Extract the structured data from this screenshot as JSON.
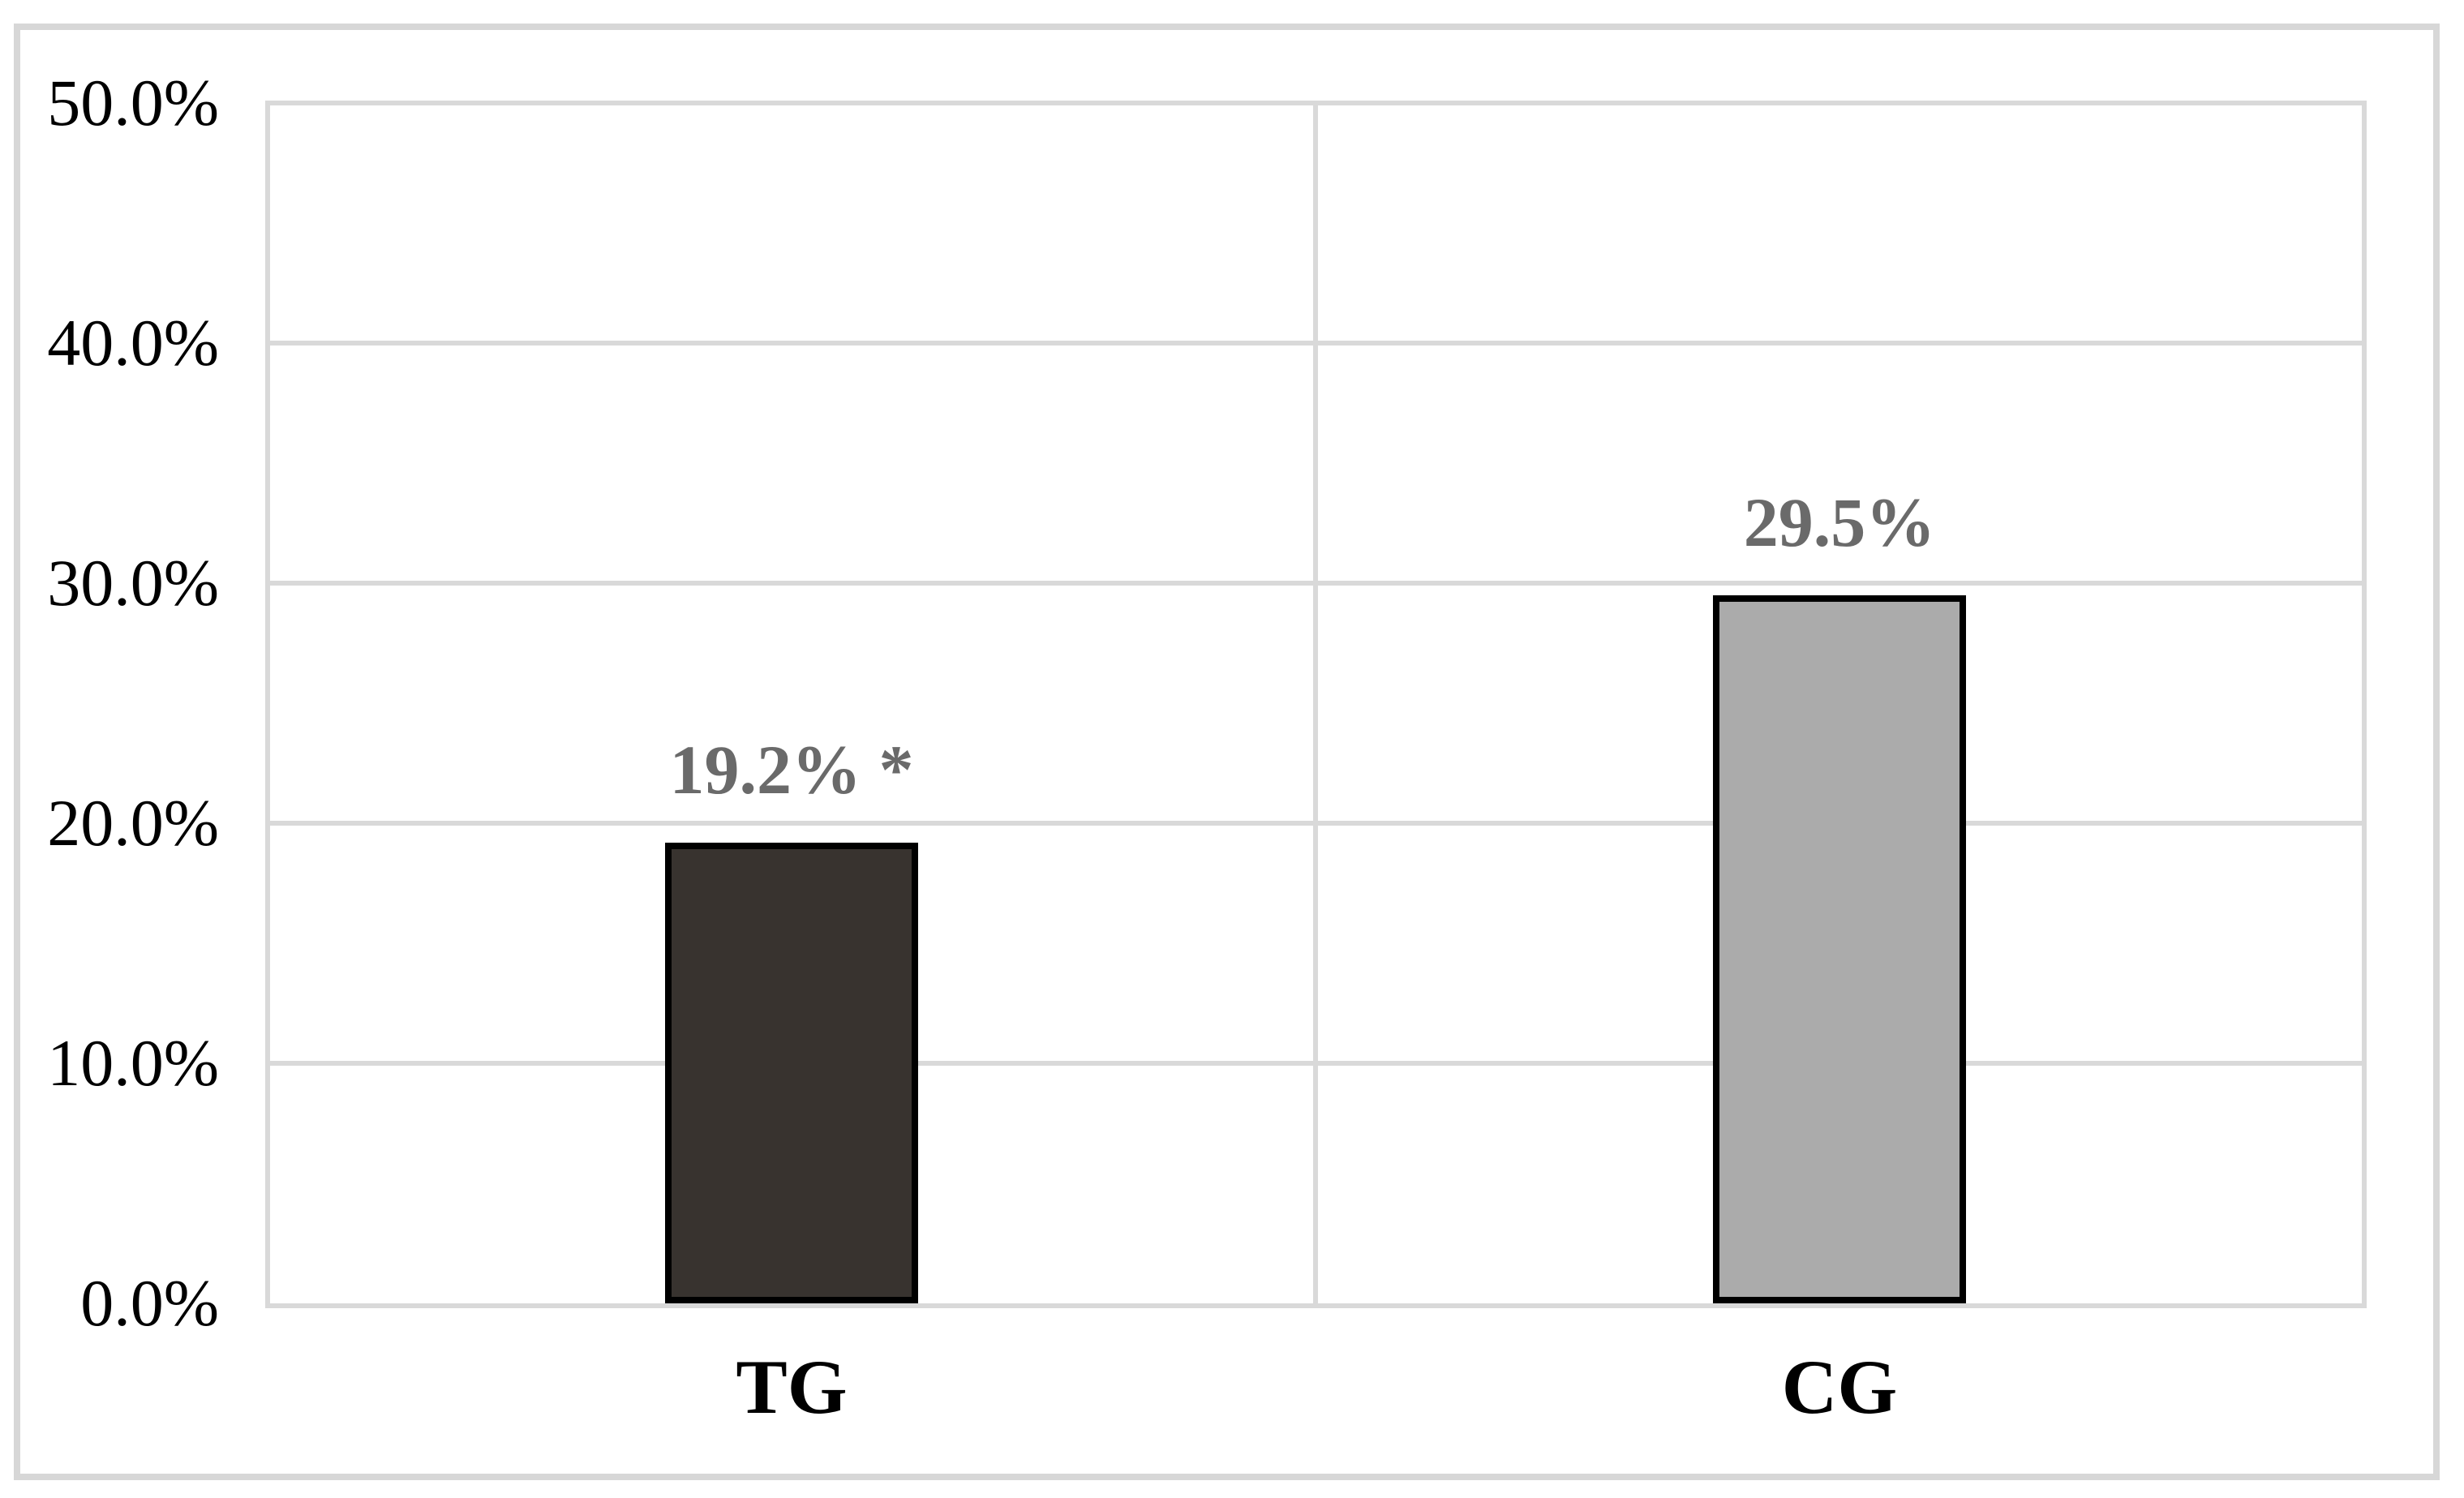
{
  "chart_data": {
    "type": "bar",
    "title": "",
    "xlabel": "",
    "ylabel": "",
    "categories": [
      "TG",
      "CG"
    ],
    "values": [
      19.2,
      29.5
    ],
    "value_labels": [
      "19.2% *",
      "29.5%"
    ],
    "ylim": [
      0,
      50
    ],
    "ytick_values": [
      0,
      10,
      20,
      30,
      40,
      50
    ],
    "ytick_labels": [
      "0.0%",
      "10.0%",
      "20.0%",
      "30.0%",
      "40.0%",
      "50.0%"
    ],
    "grid": true,
    "legend": false,
    "bar_colors": [
      "#38332f",
      "#ababab"
    ],
    "bar_border_color": "#000000",
    "data_label_color": "#6a6a6a",
    "gridline_color": "#d9d9d9",
    "frame_border_color": "#d7d7d7"
  }
}
